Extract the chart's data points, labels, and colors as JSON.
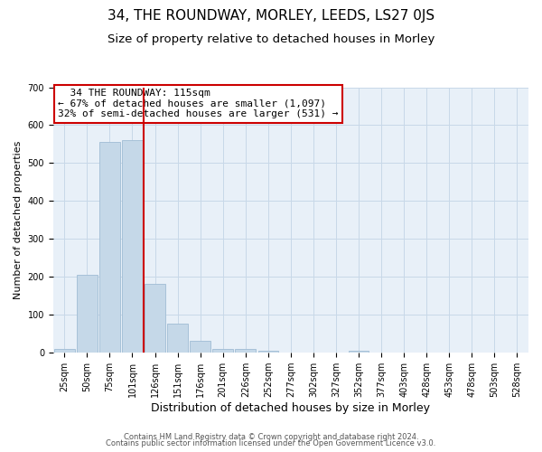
{
  "title": "34, THE ROUNDWAY, MORLEY, LEEDS, LS27 0JS",
  "subtitle": "Size of property relative to detached houses in Morley",
  "xlabel": "Distribution of detached houses by size in Morley",
  "ylabel": "Number of detached properties",
  "bar_labels": [
    "25sqm",
    "50sqm",
    "75sqm",
    "101sqm",
    "126sqm",
    "151sqm",
    "176sqm",
    "201sqm",
    "226sqm",
    "252sqm",
    "277sqm",
    "302sqm",
    "327sqm",
    "352sqm",
    "377sqm",
    "403sqm",
    "428sqm",
    "453sqm",
    "478sqm",
    "503sqm",
    "528sqm"
  ],
  "bar_heights": [
    10,
    205,
    555,
    560,
    180,
    75,
    30,
    10,
    8,
    5,
    0,
    0,
    0,
    5,
    0,
    0,
    0,
    0,
    0,
    0,
    0
  ],
  "bar_color": "#c5d8e8",
  "bar_edgecolor": "#a0bcd4",
  "property_line_color": "#cc0000",
  "property_line_x": 3.5,
  "ylim": [
    0,
    700
  ],
  "yticks": [
    0,
    100,
    200,
    300,
    400,
    500,
    600,
    700
  ],
  "annotation_title": "34 THE ROUNDWAY: 115sqm",
  "annotation_line1": "← 67% of detached houses are smaller (1,097)",
  "annotation_line2": "32% of semi-detached houses are larger (531) →",
  "annotation_box_facecolor": "#ffffff",
  "annotation_box_edgecolor": "#cc0000",
  "footer_line1": "Contains HM Land Registry data © Crown copyright and database right 2024.",
  "footer_line2": "Contains public sector information licensed under the Open Government Licence v3.0.",
  "plot_bg_color": "#e8f0f8",
  "fig_bg_color": "#ffffff",
  "grid_color": "#c8d8e8",
  "title_fontsize": 11,
  "subtitle_fontsize": 9.5,
  "xlabel_fontsize": 9,
  "ylabel_fontsize": 8,
  "tick_fontsize": 7,
  "annotation_fontsize": 8,
  "footer_fontsize": 6
}
